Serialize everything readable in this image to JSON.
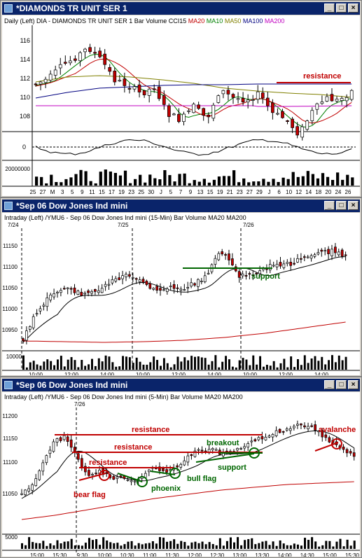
{
  "colors": {
    "ma20": "#000000",
    "ma10": "#008000",
    "ma50": "#808000",
    "ma100": "#000080",
    "ma200": "#c00000",
    "up": "#ffffff",
    "down": "#c00000",
    "annot_red": "#c00000",
    "annot_green": "#006600"
  },
  "window1": {
    "title": "*DIAMONDS TR UNIT SER 1",
    "legend": {
      "prefix": "Daily  (Left)   DIA - DIAMONDS TR UNIT SER 1   Bar   Volume  CCI15",
      "ma20": "MA20",
      "ma10": "MA10",
      "ma50": "MA50",
      "ma100": "MA100",
      "ma200": "MA200"
    },
    "price_ticks": [
      "116",
      "114",
      "112",
      "110",
      "108"
    ],
    "cci_tick": "0",
    "volume_tick": "20000000",
    "date_ticks": [
      "25",
      "27",
      "M",
      "3",
      "5",
      "9",
      "11",
      "15",
      "17",
      "19",
      "23",
      "25",
      "30",
      "J",
      "5",
      "7",
      "9",
      "13",
      "15",
      "19",
      "21",
      "23",
      "27",
      "29",
      "J",
      "6",
      "10",
      "12",
      "14",
      "18",
      "20",
      "24",
      "26"
    ],
    "annotation": "resistance"
  },
  "window2": {
    "title": "*Sep 06  Dow Jones Ind mini",
    "legend": "Intraday  (Left)   /YMU6 - Sep 06  Dow Jones Ind mini  (15-Min)  Bar  Volume  MA20  MA200",
    "date_labels": [
      "7/24",
      "7/25",
      "7/26"
    ],
    "price_ticks": [
      "11150",
      "11100",
      "11050",
      "11000",
      "10950"
    ],
    "volume_tick": "10000",
    "time_ticks": [
      "10:00",
      "12:00",
      "14:00",
      "10:00",
      "12:00",
      "14:00",
      "10:00",
      "12:00",
      "14:00"
    ],
    "annotation": "support"
  },
  "window3": {
    "title": "*Sep 06  Dow Jones Ind mini",
    "legend": "Intraday  (Left)   /YMU6 - Sep 06  Dow Jones Ind mini  (5-Min)  Bar  Volume  MA20  MA200",
    "date_label": "7/26",
    "price_ticks": [
      "11200",
      "11150",
      "11100",
      "11050"
    ],
    "volume_tick": "5000",
    "time_ticks": [
      "15:00",
      "15:30",
      "9:30",
      "10:00",
      "10:30",
      "11:00",
      "11:30",
      "12:00",
      "12:30",
      "13:00",
      "13:30",
      "14:00",
      "14:30",
      "15:00",
      "15:30"
    ],
    "annotations": {
      "resistance1": "resistance",
      "resistance2": "resistance",
      "resistance3": "resistance",
      "bear_flag": "bear flag",
      "phoenix": "phoenix",
      "bull_flag": "bull flag",
      "breakout": "breakout",
      "support": "support",
      "avalanche": "avalanche"
    }
  }
}
